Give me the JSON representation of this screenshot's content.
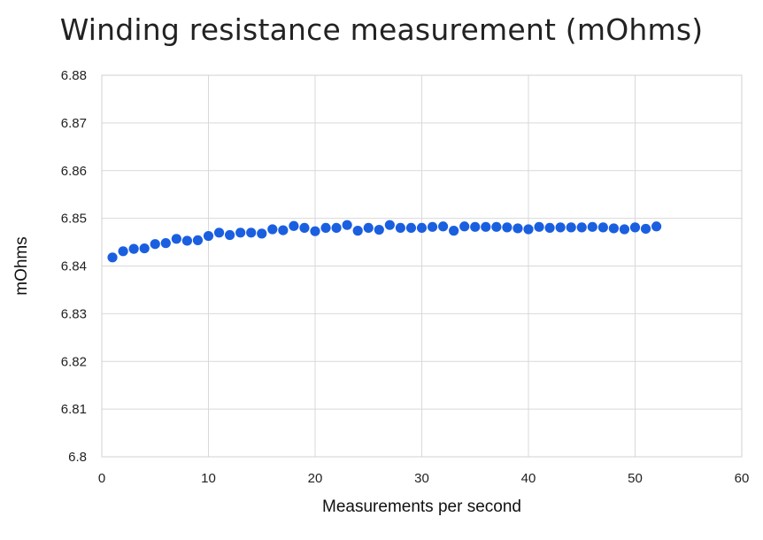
{
  "chart_data": {
    "type": "scatter",
    "title": "Winding resistance measurement (mOhms)",
    "xlabel": "Measurements per second",
    "ylabel": "mOhms",
    "xlim": [
      0,
      60
    ],
    "ylim": [
      6.8,
      6.88
    ],
    "x_ticks": [
      "0",
      "10",
      "20",
      "30",
      "40",
      "50",
      "60"
    ],
    "y_ticks": [
      "6.88",
      "6.87",
      "6.86",
      "6.85",
      "6.84",
      "6.83",
      "6.82",
      "6.81",
      "6.8"
    ],
    "grid": true,
    "legend": "none",
    "marker_color": "#1a5fe0",
    "grid_color": "#d9d9d9",
    "series": [
      {
        "x": [
          1,
          2,
          3,
          4,
          5,
          6,
          7,
          8,
          9,
          10,
          11,
          12,
          13,
          14,
          15,
          16,
          17,
          18,
          19,
          20,
          21,
          22,
          23,
          24,
          25,
          26,
          27,
          28,
          29,
          30,
          31,
          32,
          33,
          34,
          35,
          36,
          37,
          38,
          39,
          40,
          41,
          42,
          43,
          44,
          45,
          46,
          47,
          48,
          49,
          50,
          51,
          52
        ],
        "y": [
          6.8418,
          6.8431,
          6.8436,
          6.8437,
          6.8446,
          6.8448,
          6.8457,
          6.8453,
          6.8454,
          6.8463,
          6.847,
          6.8465,
          6.847,
          6.847,
          6.8468,
          6.8477,
          6.8475,
          6.8484,
          6.848,
          6.8473,
          6.848,
          6.848,
          6.8486,
          6.8474,
          6.848,
          6.8476,
          6.8486,
          6.848,
          6.848,
          6.848,
          6.8482,
          6.8483,
          6.8474,
          6.8483,
          6.8482,
          6.8482,
          6.8482,
          6.8481,
          6.8479,
          6.8477,
          6.8482,
          6.848,
          6.8481,
          6.8481,
          6.8481,
          6.8482,
          6.8481,
          6.8479,
          6.8477,
          6.8481,
          6.8478,
          6.8483
        ]
      }
    ]
  }
}
